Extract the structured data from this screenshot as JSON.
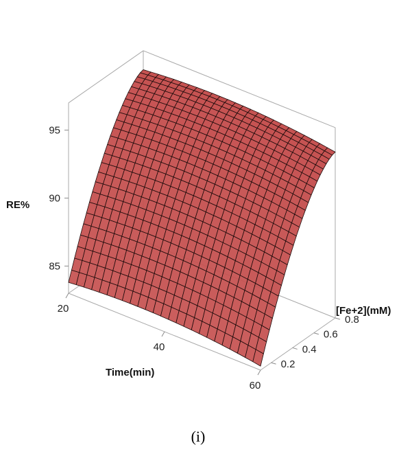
{
  "caption": "(i)",
  "chart_data": {
    "type": "surface",
    "title": "",
    "zlabel": "RE%",
    "xlabel": "Time(min)",
    "ylabel": "[Fe+2](mM)",
    "xlim": [
      20,
      60
    ],
    "ylim": [
      0.1,
      0.8
    ],
    "zlim": [
      83,
      97
    ],
    "x_ticks": [
      "20",
      "40",
      "60"
    ],
    "y_ticks": [
      "0.2",
      "0.4",
      "0.6",
      "0.8"
    ],
    "z_ticks": [
      "85",
      "90",
      "95"
    ],
    "grid_size": [
      25,
      25
    ],
    "surface": {
      "x_range": [
        20,
        60
      ],
      "y_range": [
        0.1,
        0.8
      ],
      "corners": {
        "x20_y0.1": 83.8,
        "x60_y0.1": 83.3,
        "x20_y0.8": 95.6,
        "x60_y0.8": 95.2
      },
      "peak_near_x": 40
    },
    "surface_color": "#c5504f",
    "mesh_color": "#1a0a0a"
  }
}
